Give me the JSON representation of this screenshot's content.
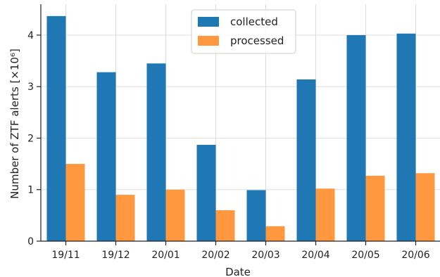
{
  "chart_data": {
    "type": "bar",
    "categories": [
      "19/11",
      "19/12",
      "20/01",
      "20/02",
      "20/03",
      "20/04",
      "20/05",
      "20/06"
    ],
    "series": [
      {
        "name": "collected",
        "values": [
          4.37,
          3.28,
          3.45,
          1.87,
          0.99,
          3.14,
          4.0,
          4.03
        ],
        "color": "#1f77b4"
      },
      {
        "name": "processed",
        "values": [
          1.5,
          0.9,
          1.0,
          0.6,
          0.29,
          1.02,
          1.27,
          1.32
        ],
        "color": "#ff983e"
      }
    ],
    "xlabel": "Date",
    "ylabel": "Number of ZTF alerts [×10⁶]",
    "ylim": [
      0,
      4.6
    ],
    "yticks": [
      "0",
      "1",
      "2",
      "3",
      "4"
    ],
    "grid": true,
    "legend_position": "upper-center"
  }
}
